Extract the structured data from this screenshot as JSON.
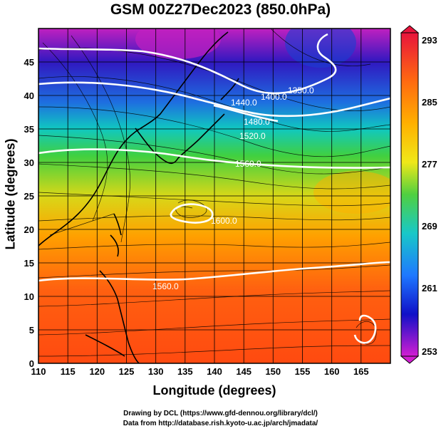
{
  "title": "GSM 00Z27Dec2023 (850.0hPa)",
  "xlabel": "Longitude (degrees)",
  "ylabel": "Latitude  (degrees)",
  "footer": {
    "line1": "Drawing by DCL (https://www.gfd-dennou.org/library/dcl/)",
    "line2": "Data from http://database.rish.kyoto-u.ac.jp/arch/jmadata/"
  },
  "x_ticks": [
    "110",
    "115",
    "120",
    "125",
    "130",
    "135",
    "140",
    "145",
    "150",
    "155",
    "160",
    "165"
  ],
  "y_ticks": [
    "0",
    "5",
    "10",
    "15",
    "20",
    "25",
    "30",
    "35",
    "40",
    "45"
  ],
  "colorbar": {
    "labels": [
      "293",
      "285",
      "277",
      "269",
      "261",
      "253"
    ],
    "colors": [
      "#e8143c",
      "#ff7a00",
      "#ffd400",
      "#56d23a",
      "#18c8c8",
      "#1e78ff",
      "#1010c8",
      "#d21ed2"
    ]
  },
  "contour_labels": [
    "1350.0",
    "1400.0",
    "1440.0",
    "1480.0",
    "1520.0",
    "1560.0",
    "1600.0",
    "1560.0"
  ],
  "chart_data": {
    "type": "heatmap",
    "title": "GSM 00Z27Dec2023 (850.0hPa)",
    "xlabel": "Longitude (degrees)",
    "ylabel": "Latitude  (degrees)",
    "xlim": [
      110,
      170
    ],
    "ylim": [
      0,
      50
    ],
    "colorbar_range": [
      253,
      293
    ],
    "contour_values": [
      1350.0,
      1400.0,
      1440.0,
      1480.0,
      1520.0,
      1560.0,
      1600.0
    ]
  }
}
